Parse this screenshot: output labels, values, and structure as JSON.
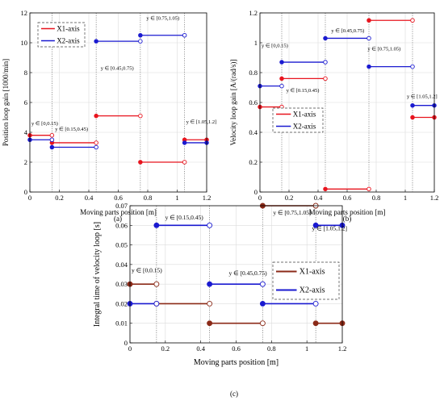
{
  "chart_data": [
    {
      "panel": "(a)",
      "type": "line",
      "subtype": "piecewise-constant step",
      "xlabel": "Moving parts position [m]",
      "ylabel": "Position loop gain [1000/min]",
      "xlim": [
        0,
        1.2
      ],
      "ylim": [
        0,
        12
      ],
      "xticks": [
        "0",
        "0.2",
        "0.4",
        "0.6",
        "0.8",
        "1",
        "1.2"
      ],
      "yticks": [
        "0",
        "2",
        "4",
        "6",
        "8",
        "10",
        "12"
      ],
      "grid": true,
      "legend": {
        "placement": "top-left",
        "entries": [
          "X1-axis",
          "X2-axis"
        ]
      },
      "intervals": [
        "y ∈ [0,0.15)",
        "y ∈ [0.15,0.45)",
        "y ∈ [0.45,0.75)",
        "y ∈ [0.75,1.05)",
        "y ∈ [1.05,1.2]"
      ],
      "series": [
        {
          "name": "X1-axis",
          "color": "#e8141e",
          "segments": [
            [
              0,
              0.15,
              3.8
            ],
            [
              0.15,
              0.45,
              3.3
            ],
            [
              0.45,
              0.75,
              5.1
            ],
            [
              0.75,
              1.05,
              2.0
            ],
            [
              1.05,
              1.2,
              3.5
            ]
          ]
        },
        {
          "name": "X2-axis",
          "color": "#1a1ad0",
          "segments": [
            [
              0,
              0.15,
              3.5
            ],
            [
              0.15,
              0.45,
              3.0
            ],
            [
              0.45,
              0.75,
              10.1
            ],
            [
              0.75,
              1.05,
              10.5
            ],
            [
              1.05,
              1.2,
              3.3
            ]
          ]
        }
      ]
    },
    {
      "panel": "(b)",
      "type": "line",
      "subtype": "piecewise-constant step",
      "xlabel": "Moving parts position [m]",
      "ylabel": "Velocity loop gain [A/(rad/s)]",
      "xlim": [
        0,
        1.2
      ],
      "ylim": [
        0,
        1.2
      ],
      "xticks": [
        "0",
        "0.2",
        "0.4",
        "0.6",
        "0.8",
        "1",
        "1.2"
      ],
      "yticks": [
        "0",
        "0.2",
        "0.4",
        "0.6",
        "0.8",
        "1",
        "1.2"
      ],
      "grid": true,
      "legend": {
        "placement": "bottom-left",
        "entries": [
          "X1-axis",
          "X2-axis"
        ]
      },
      "intervals": [
        "y ∈ [0,0.15)",
        "y ∈ [0.15,0.45)",
        "y ∈ [0.45,0.75)",
        "y ∈ [0.75,1.05)",
        "y ∈ [1.05,1.2]"
      ],
      "series": [
        {
          "name": "X1-axis",
          "color": "#e8141e",
          "segments": [
            [
              0,
              0.15,
              0.57
            ],
            [
              0.15,
              0.45,
              0.76
            ],
            [
              0.45,
              0.75,
              0.02
            ],
            [
              0.75,
              1.05,
              1.15
            ],
            [
              1.05,
              1.2,
              0.5
            ]
          ]
        },
        {
          "name": "X2-axis",
          "color": "#1a1ad0",
          "segments": [
            [
              0,
              0.15,
              0.71
            ],
            [
              0.15,
              0.45,
              0.87
            ],
            [
              0.45,
              0.75,
              1.03
            ],
            [
              0.75,
              1.05,
              0.84
            ],
            [
              1.05,
              1.2,
              0.58
            ]
          ]
        }
      ]
    },
    {
      "panel": "(c)",
      "type": "line",
      "subtype": "piecewise-constant step",
      "xlabel": "Moving parts position [m]",
      "ylabel": "Integral time of velocity loop  [s]",
      "xlim": [
        0,
        1.2
      ],
      "ylim": [
        0,
        0.07
      ],
      "xticks": [
        "0",
        "0.2",
        "0.4",
        "0.6",
        "0.8",
        "1",
        "1.2"
      ],
      "yticks": [
        "0",
        "0.01",
        "0.02",
        "0.03",
        "0.04",
        "0.05",
        "0.06",
        "0.07"
      ],
      "grid": true,
      "legend": {
        "placement": "right",
        "entries": [
          "X1-axis",
          "X2-axis"
        ]
      },
      "intervals": [
        "y ∈ [0,0.15)",
        "y ∈ [0.15,0.45)",
        "y ∈ [0.45,0.75)",
        "y ∈ [0.75,1.05)",
        "y ∈ [1.05,1.2]"
      ],
      "series": [
        {
          "name": "X1-axis",
          "color": "#8b2a18",
          "segments": [
            [
              0,
              0.15,
              0.03
            ],
            [
              0.15,
              0.45,
              0.02
            ],
            [
              0.45,
              0.75,
              0.01
            ],
            [
              0.75,
              1.05,
              0.07
            ],
            [
              1.05,
              1.2,
              0.01
            ]
          ]
        },
        {
          "name": "X2-axis",
          "color": "#1a1ad0",
          "segments": [
            [
              0,
              0.15,
              0.02
            ],
            [
              0.15,
              0.45,
              0.06
            ],
            [
              0.45,
              0.75,
              0.03
            ],
            [
              0.75,
              1.05,
              0.02
            ],
            [
              1.05,
              1.2,
              0.06
            ]
          ]
        }
      ]
    }
  ]
}
